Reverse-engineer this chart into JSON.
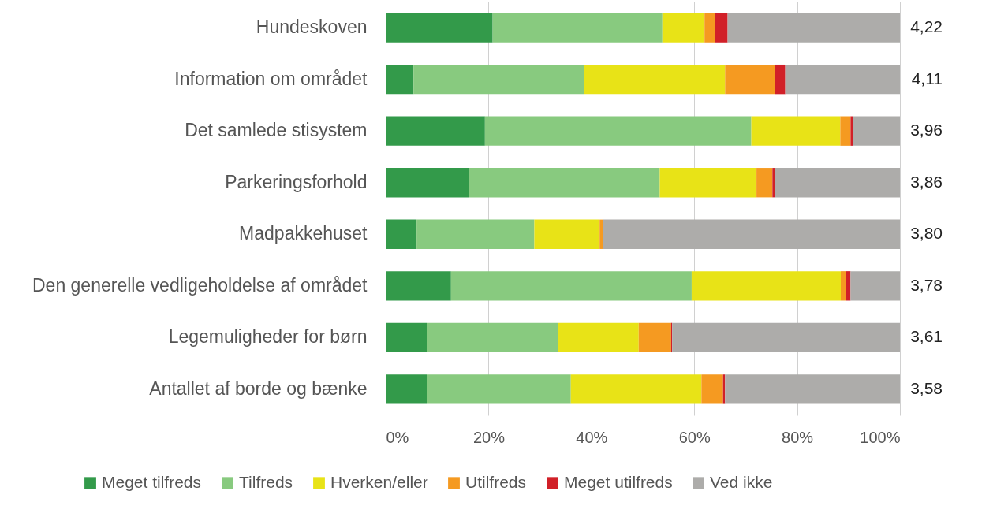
{
  "chart_data": {
    "type": "bar",
    "orientation": "horizontal",
    "stacked": true,
    "categories": [
      "Hundeskoven",
      "Information om området",
      "Det samlede stisystem",
      "Parkeringsforhold",
      "Madpakkehuset",
      "Den generelle vedligeholdelse af området",
      "Legemuligheder for børn",
      "Antallet af borde og bænke"
    ],
    "series": [
      {
        "name": "Meget tilfreds",
        "color": "#339a4a",
        "values": [
          20.8,
          5.4,
          19.3,
          16.2,
          6.0,
          12.7,
          8.1,
          8.1
        ]
      },
      {
        "name": "Tilfreds",
        "color": "#88ca7f",
        "values": [
          33.0,
          33.2,
          51.8,
          37.1,
          22.9,
          46.8,
          25.4,
          27.9
        ]
      },
      {
        "name": "Hverken/eller",
        "color": "#e8e317",
        "values": [
          8.2,
          27.4,
          17.3,
          18.8,
          12.7,
          29.0,
          15.7,
          25.4
        ]
      },
      {
        "name": "Utilfreds",
        "color": "#f59a21",
        "values": [
          2.0,
          9.7,
          2.0,
          3.1,
          0.6,
          1.0,
          6.3,
          4.2
        ]
      },
      {
        "name": "Meget utilfreds",
        "color": "#d12028",
        "values": [
          2.5,
          2.0,
          0.5,
          0.5,
          0,
          0.9,
          0.2,
          0.4
        ]
      },
      {
        "name": "Ved ikke",
        "color": "#adacaa",
        "values": [
          33.5,
          22.3,
          9.1,
          24.3,
          57.8,
          9.6,
          44.3,
          34.0
        ]
      }
    ],
    "xlim": [
      0,
      100
    ],
    "xticks": [
      {
        "value": 0,
        "label": "0%"
      },
      {
        "value": 20,
        "label": "20%"
      },
      {
        "value": 40,
        "label": "40%"
      },
      {
        "value": 60,
        "label": "60%"
      },
      {
        "value": 80,
        "label": "80%"
      },
      {
        "value": 100,
        "label": "100%"
      }
    ],
    "grid": "x",
    "legend": "bottom",
    "annotations": [
      "4,22",
      "4,11",
      "3,96",
      "3,86",
      "3,80",
      "3,78",
      "3,61",
      "3,58"
    ]
  }
}
